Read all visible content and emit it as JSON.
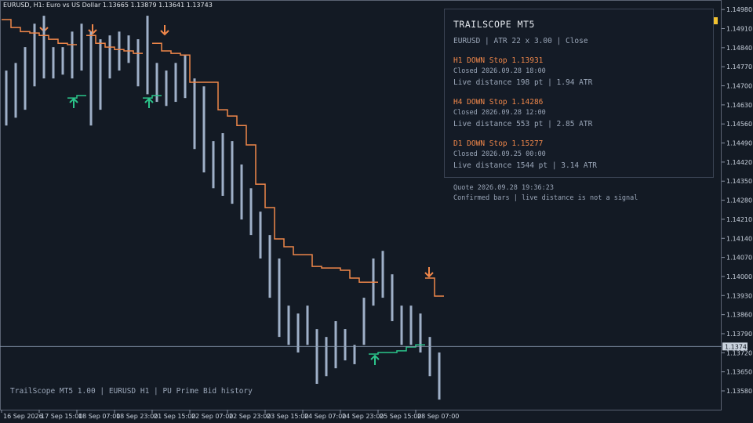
{
  "header": {
    "symbol_line": "EURUSD, H1:  Euro vs US Dollar  1.13665 1.13879 1.13641 1.13743"
  },
  "chart_data": {
    "type": "range-bar",
    "categories": [
      "16 Sep 2026",
      null,
      null,
      null,
      "17 Sep 15:00",
      null,
      null,
      null,
      "18 Sep 07:00",
      null,
      null,
      null,
      "18 Sep 23:00",
      null,
      null,
      null,
      "21 Sep 15:00",
      null,
      null,
      null,
      "22 Sep 07:00",
      null,
      null,
      null,
      "22 Sep 23:00",
      null,
      null,
      null,
      "23 Sep 15:00",
      null,
      null,
      null,
      "24 Sep 07:00",
      null,
      null,
      null,
      "24 Sep 23:00",
      null,
      null,
      null,
      "25 Sep 15:00",
      null,
      null,
      null,
      "28 Sep 07:00",
      null,
      null
    ],
    "high": [
      1.14756,
      1.14784,
      1.14842,
      1.14928,
      1.14957,
      1.14842,
      1.14842,
      1.14899,
      1.14928,
      1.14899,
      1.14871,
      1.14885,
      1.14899,
      1.14885,
      1.14871,
      1.14957,
      1.14784,
      1.14756,
      1.14784,
      1.14813,
      1.14727,
      1.14698,
      1.14497,
      1.14526,
      1.14497,
      1.14411,
      1.14324,
      1.14238,
      1.14152,
      1.14066,
      1.13893,
      1.13864,
      1.13893,
      1.13807,
      1.13778,
      1.13836,
      1.13807,
      1.13749,
      1.13922,
      1.14066,
      1.14094,
      1.14008,
      1.13893,
      1.13893,
      1.13864,
      1.13778,
      1.13721
    ],
    "low": [
      1.14554,
      1.14583,
      1.14612,
      1.14698,
      1.14727,
      1.14727,
      1.14741,
      1.14727,
      1.14756,
      1.14554,
      1.14612,
      1.14727,
      1.14756,
      1.14784,
      1.14698,
      1.14669,
      1.14641,
      1.14626,
      1.14641,
      1.14655,
      1.14468,
      1.14382,
      1.14324,
      1.14296,
      1.14267,
      1.14209,
      1.14152,
      1.14066,
      1.13922,
      1.13778,
      1.13749,
      1.13721,
      1.13749,
      1.13606,
      1.13634,
      1.13663,
      1.13692,
      1.13678,
      1.13749,
      1.13893,
      1.13922,
      1.13836,
      1.13749,
      1.13749,
      1.13721,
      1.13634,
      1.13548
    ],
    "stop_down": [
      1.14943,
      1.14914,
      1.14899,
      1.14894,
      1.14885,
      1.14871,
      1.14856,
      1.14851,
      null,
      1.14885,
      1.14856,
      1.14842,
      1.14833,
      1.14828,
      1.14819,
      null,
      1.14856,
      1.14828,
      1.14819,
      1.14813,
      1.14713,
      1.14713,
      1.14713,
      1.14612,
      1.14589,
      1.14554,
      1.14483,
      1.14339,
      1.14253,
      1.14138,
      1.14109,
      1.1408,
      1.1408,
      1.14037,
      1.14031,
      1.14031,
      1.14023,
      1.13994,
      1.13979,
      1.13979,
      null,
      null,
      null,
      null,
      null,
      1.13994,
      1.13928
    ],
    "stop_up": [
      null,
      null,
      null,
      null,
      null,
      null,
      null,
      1.14655,
      1.14664,
      null,
      null,
      null,
      null,
      null,
      null,
      1.14655,
      1.14664,
      null,
      null,
      null,
      null,
      null,
      null,
      null,
      null,
      null,
      null,
      null,
      null,
      null,
      null,
      null,
      null,
      null,
      null,
      null,
      null,
      null,
      null,
      1.13715,
      1.13721,
      1.13721,
      1.13727,
      1.13741,
      1.13749,
      null,
      null
    ],
    "colors": {
      "bars": "#9fb0c8",
      "stop_down": "#f0874a",
      "stop_up": "#2bc48a"
    },
    "ylim": [
      1.13511,
      1.15015
    ],
    "yticks": [
      {
        "value": 1.1498,
        "label": "1.14980"
      },
      {
        "value": 1.1491,
        "label": "1.14910"
      },
      {
        "value": 1.1484,
        "label": "1.14840"
      },
      {
        "value": 1.1477,
        "label": "1.14770"
      },
      {
        "value": 1.147,
        "label": "1.14700"
      },
      {
        "value": 1.1463,
        "label": "1.14630"
      },
      {
        "value": 1.1456,
        "label": "1.14560"
      },
      {
        "value": 1.1449,
        "label": "1.14490"
      },
      {
        "value": 1.1442,
        "label": "1.14420"
      },
      {
        "value": 1.1435,
        "label": "1.14350"
      },
      {
        "value": 1.1428,
        "label": "1.14280"
      },
      {
        "value": 1.1421,
        "label": "1.14210"
      },
      {
        "value": 1.1414,
        "label": "1.14140"
      },
      {
        "value": 1.1407,
        "label": "1.14070"
      },
      {
        "value": 1.14,
        "label": "1.14000"
      },
      {
        "value": 1.1393,
        "label": "1.13930"
      },
      {
        "value": 1.1386,
        "label": "1.13860"
      },
      {
        "value": 1.1379,
        "label": "1.13790"
      },
      {
        "value": 1.1372,
        "label": "1.13720"
      },
      {
        "value": 1.1365,
        "label": "1.13650"
      },
      {
        "value": 1.1358,
        "label": "1.13580"
      }
    ],
    "last_price": {
      "value": 1.13743,
      "label": "1.13743"
    }
  },
  "panel": {
    "title": "TRAILSCOPE MT5",
    "subtitle": "EURUSD | ATR 22 x 3.00 | Close",
    "blocks": [
      {
        "head": "H1  DOWN  Stop 1.13931",
        "closed": "Closed 2026.09.28 18:00",
        "distance": "Live distance 198 pt | 1.94 ATR"
      },
      {
        "head": "H4  DOWN  Stop 1.14286",
        "closed": "Closed 2026.09.28 12:00",
        "distance": "Live distance 553 pt | 2.85 ATR"
      },
      {
        "head": "D1  DOWN  Stop 1.15277",
        "closed": "Closed 2026.09.25 00:00",
        "distance": "Live distance 1544 pt | 3.14 ATR"
      }
    ],
    "quote": "Quote 2026.09.28 19:36:23",
    "note": "Confirmed bars | live distance is not a signal"
  },
  "footer": "TrailScope MT5 1.00 | EURUSD H1 | PU Prime Bid history"
}
